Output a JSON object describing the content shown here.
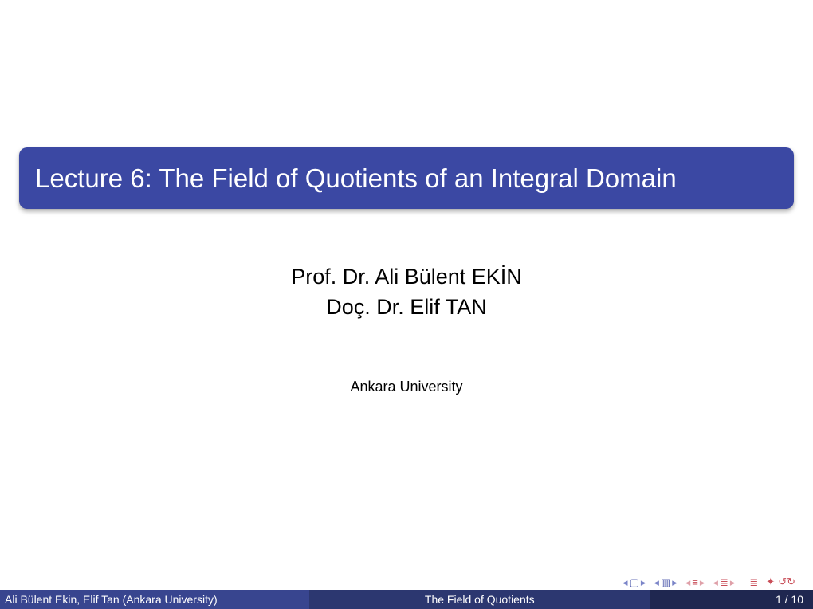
{
  "colors": {
    "structure": "#3b48a3",
    "structure_light": "#7b85c8",
    "alert": "#c94e58",
    "alert_light": "#dfa0a8",
    "footer_left": "#38458f",
    "footer_center": "#2c3770",
    "footer_right": "#1f2750",
    "title_text": "#ffffff",
    "body_text": "#000000"
  },
  "title": "Lecture 6: The Field of Quotients of an Integral Domain",
  "authors": [
    "Prof. Dr. Ali Bülent EKİN",
    "Doç. Dr. Elif TAN"
  ],
  "institute": "Ankara University",
  "footer": {
    "author_short": "Ali Bülent Ekin, Elif Tan (Ankara University)",
    "title_short": "The Field of Quotients",
    "page_current": 1,
    "page_total": 10
  }
}
